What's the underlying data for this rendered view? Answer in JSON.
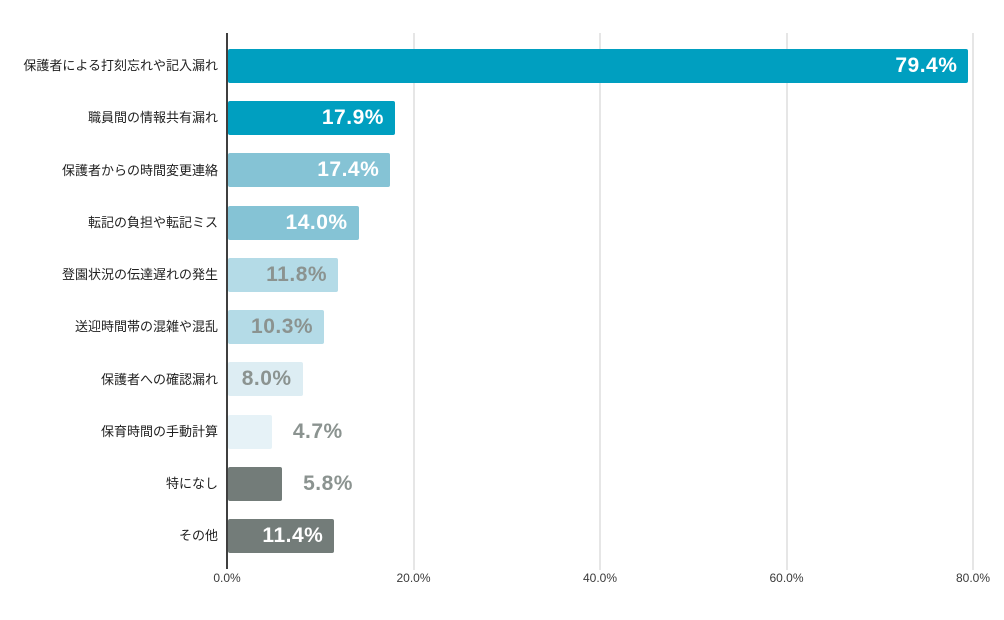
{
  "chart_data": {
    "type": "bar",
    "orientation": "horizontal",
    "title": "",
    "xlabel": "",
    "ylabel": "",
    "xlim": [
      0,
      80
    ],
    "grid": true,
    "legend": "none",
    "categories": [
      "保護者による打刻忘れや記入漏れ",
      "職員間の情報共有漏れ",
      "保護者からの時間変更連絡",
      "転記の負担や転記ミス",
      "登園状況の伝達遅れの発生",
      "送迎時間帯の混雑や混乱",
      "保護者への確認漏れ",
      "保育時間の手動計算",
      "特になし",
      "その他"
    ],
    "values": [
      79.4,
      17.9,
      17.4,
      14.0,
      11.8,
      10.3,
      8.0,
      4.7,
      5.8,
      11.4
    ],
    "bars": [
      {
        "label": "保護者による打刻忘れや記入漏れ",
        "value": 79.4,
        "display": "79.4%",
        "color": "#009fc0",
        "value_color": "#ffffff",
        "value_position": "inside"
      },
      {
        "label": "職員間の情報共有漏れ",
        "value": 17.9,
        "display": "17.9%",
        "color": "#009fc0",
        "value_color": "#ffffff",
        "value_position": "inside"
      },
      {
        "label": "保護者からの時間変更連絡",
        "value": 17.4,
        "display": "17.4%",
        "color": "#85c3d5",
        "value_color": "#ffffff",
        "value_position": "inside"
      },
      {
        "label": "転記の負担や転記ミス",
        "value": 14.0,
        "display": "14.0%",
        "color": "#85c3d5",
        "value_color": "#ffffff",
        "value_position": "inside"
      },
      {
        "label": "登園状況の伝達遅れの発生",
        "value": 11.8,
        "display": "11.8%",
        "color": "#b4dbe7",
        "value_color": "#8b9390",
        "value_position": "inside"
      },
      {
        "label": "送迎時間帯の混雑や混乱",
        "value": 10.3,
        "display": "10.3%",
        "color": "#b4dbe7",
        "value_color": "#8b9390",
        "value_position": "inside"
      },
      {
        "label": "保護者への確認漏れ",
        "value": 8.0,
        "display": "8.0%",
        "color": "#ddedf3",
        "value_color": "#8b9390",
        "value_position": "inside"
      },
      {
        "label": "保育時間の手動計算",
        "value": 4.7,
        "display": "4.7%",
        "color": "#e6f2f7",
        "value_color": "#8b9390",
        "value_position": "outside"
      },
      {
        "label": "特になし",
        "value": 5.8,
        "display": "5.8%",
        "color": "#737c79",
        "value_color": "#8b9390",
        "value_position": "outside"
      },
      {
        "label": "その他",
        "value": 11.4,
        "display": "11.4%",
        "color": "#737c79",
        "value_color": "#ffffff",
        "value_position": "inside"
      }
    ],
    "x_axis": {
      "max": 80,
      "ticks": [
        {
          "label": "0.0%",
          "value": 0
        },
        {
          "label": "20.0%",
          "value": 20
        },
        {
          "label": "40.0%",
          "value": 40
        },
        {
          "label": "60.0%",
          "value": 60
        },
        {
          "label": "80.0%",
          "value": 80
        }
      ]
    },
    "style_colors": {
      "background": "#ffffff",
      "gridline": "#cccccc",
      "axis_line": "#3f3f3f",
      "category_label": "#1f1f1f",
      "muted_value_text": "#8b9390",
      "teal_dark": "#009fc0",
      "teal_medium": "#85c3d5",
      "teal_light": "#b4dbe7",
      "teal_pale": "#ddedf3",
      "teal_palest": "#e6f2f7",
      "gray_bar": "#737c79"
    }
  }
}
